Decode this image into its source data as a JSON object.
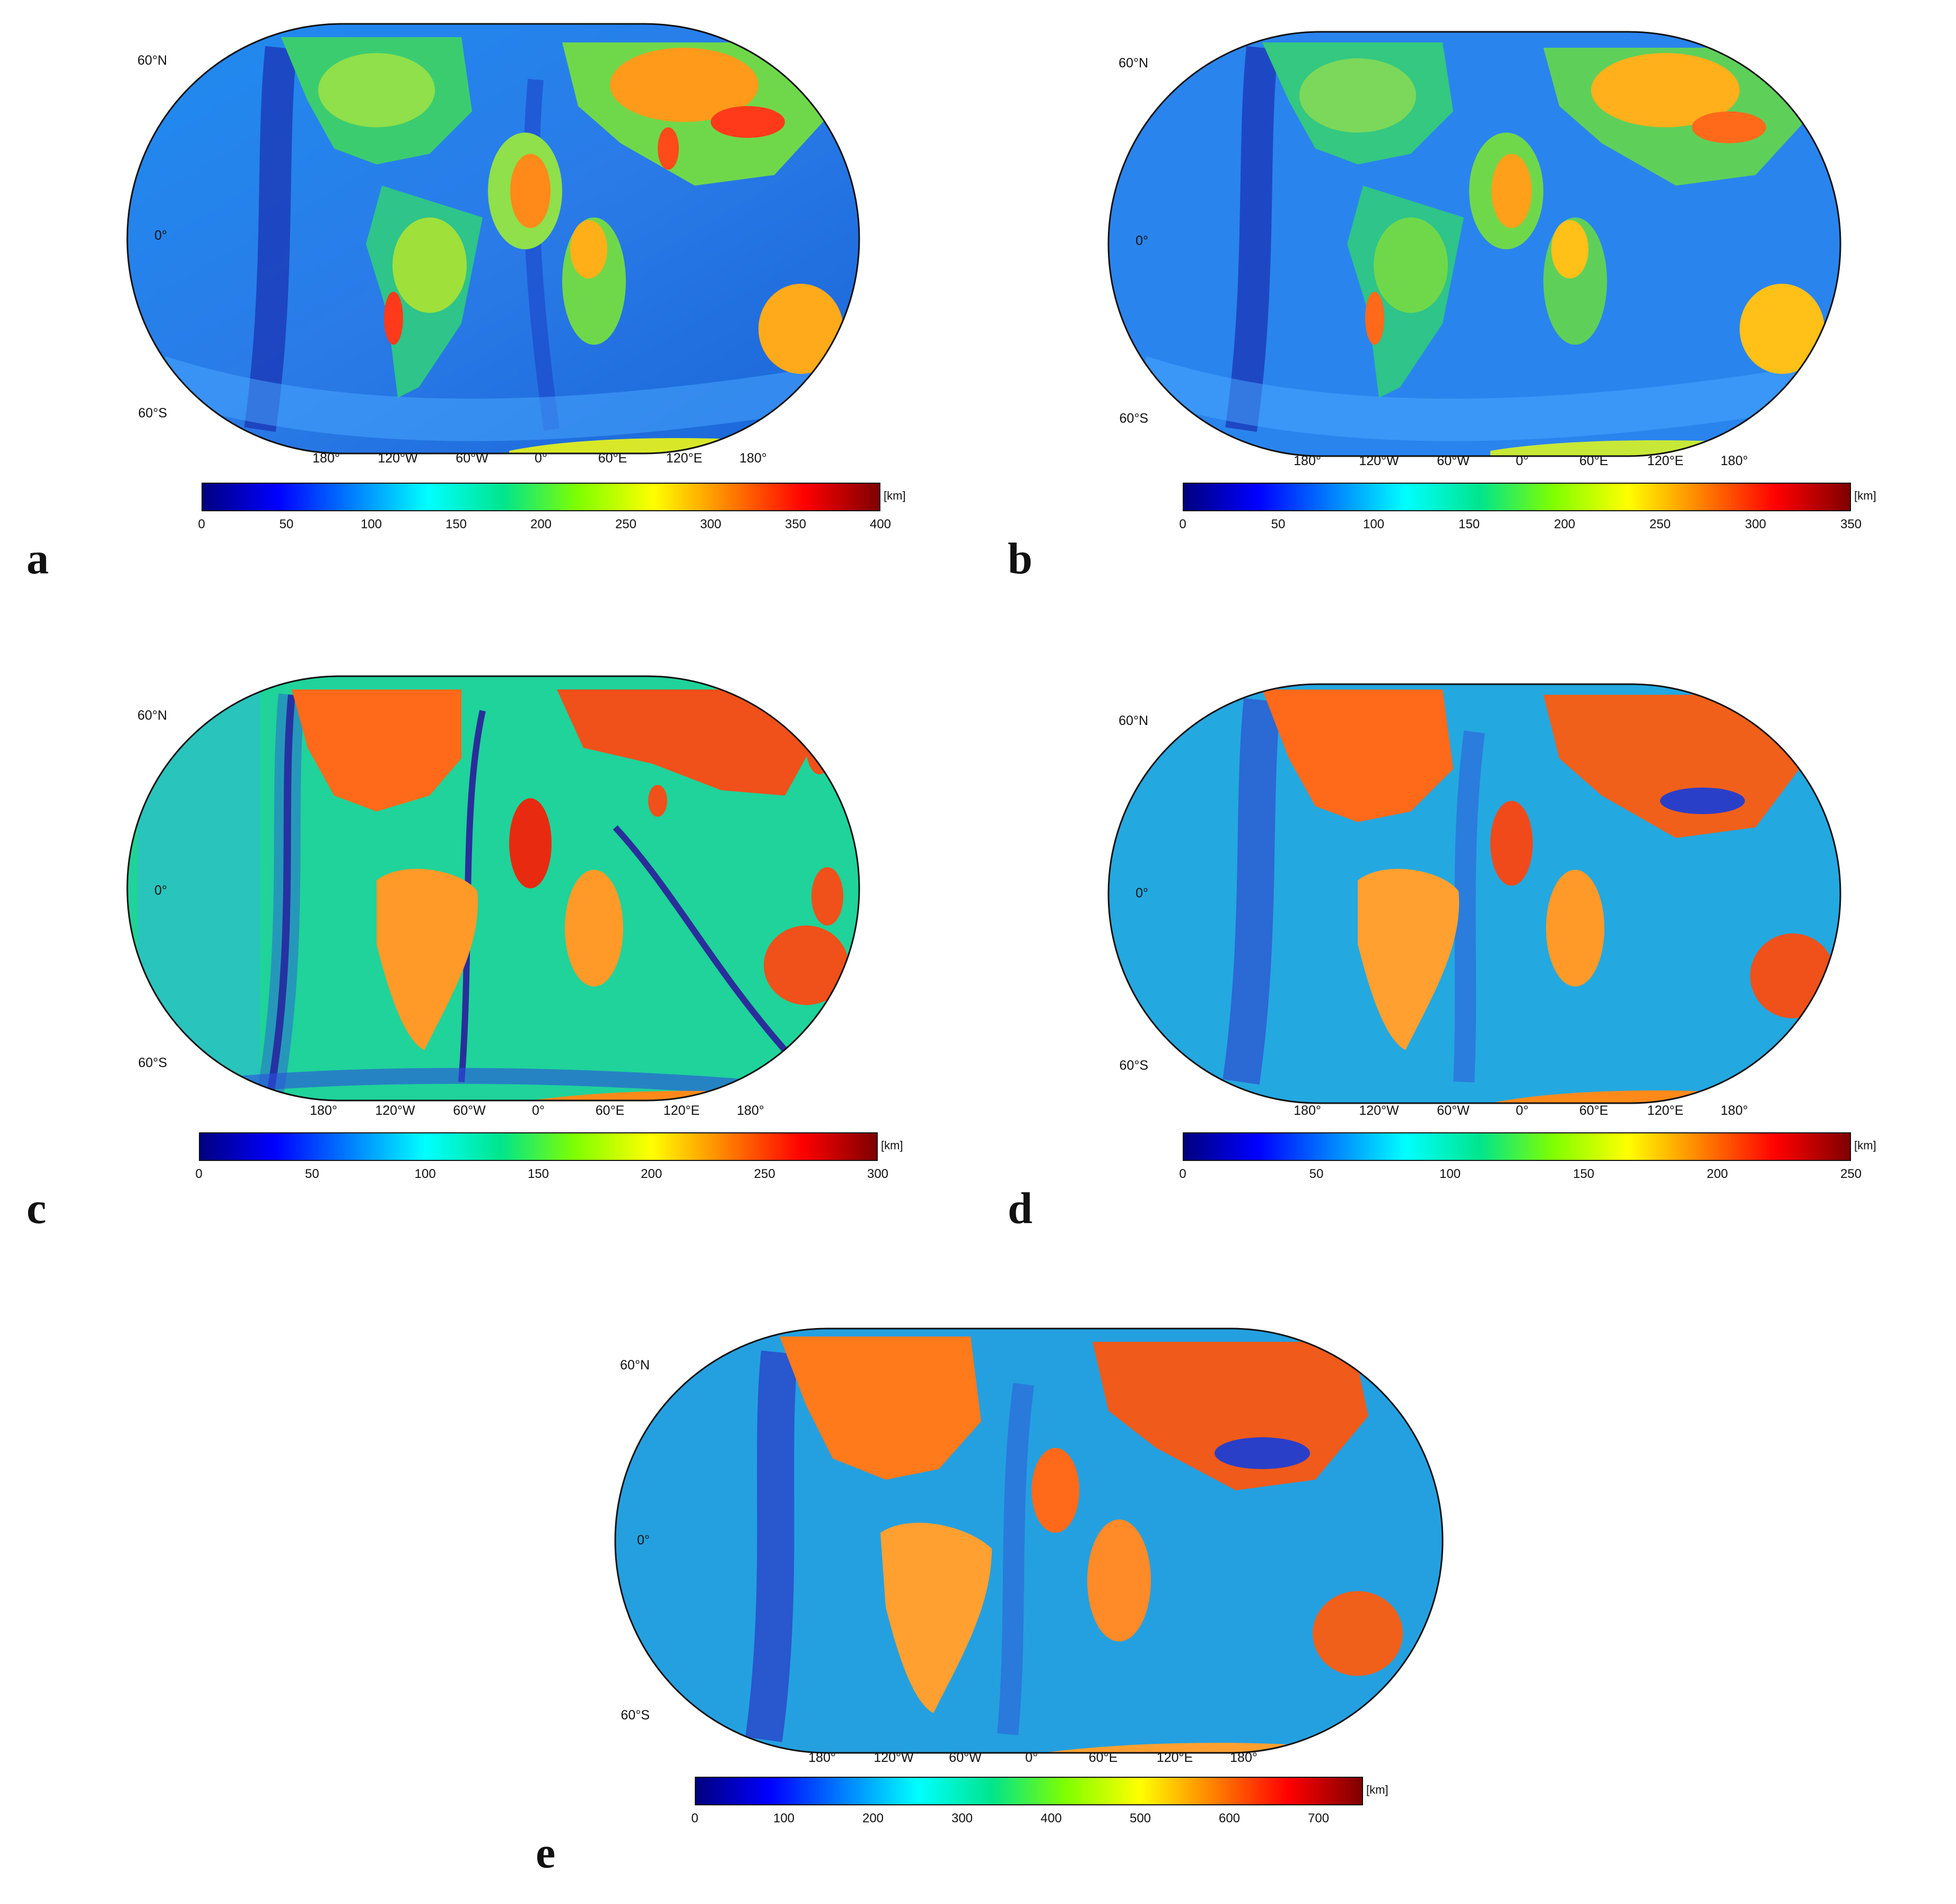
{
  "panels": [
    {
      "letter": "a",
      "lat_labels": [
        "60°N",
        "0°",
        "60°S"
      ],
      "lon_labels": [
        "180°",
        "120°W",
        "60°W",
        "0°",
        "60°E",
        "120°E",
        "180°"
      ],
      "colorbar": {
        "unit": "[km]",
        "ticks": [
          "0",
          "50",
          "100",
          "150",
          "200",
          "250",
          "300",
          "350",
          "400"
        ]
      }
    },
    {
      "letter": "b",
      "lat_labels": [
        "60°N",
        "0°",
        "60°S"
      ],
      "lon_labels": [
        "180°",
        "120°W",
        "60°W",
        "0°",
        "60°E",
        "120°E",
        "180°"
      ],
      "colorbar": {
        "unit": "[km]",
        "ticks": [
          "0",
          "50",
          "100",
          "150",
          "200",
          "250",
          "300",
          "350"
        ]
      }
    },
    {
      "letter": "c",
      "lat_labels": [
        "60°N",
        "0°",
        "60°S"
      ],
      "lon_labels": [
        "180°",
        "120°W",
        "60°W",
        "0°",
        "60°E",
        "120°E",
        "180°"
      ],
      "colorbar": {
        "unit": "[km]",
        "ticks": [
          "0",
          "50",
          "100",
          "150",
          "200",
          "250",
          "300"
        ]
      }
    },
    {
      "letter": "d",
      "lat_labels": [
        "60°N",
        "0°",
        "60°S"
      ],
      "lon_labels": [
        "180°",
        "120°W",
        "60°W",
        "0°",
        "60°E",
        "120°E",
        "180°"
      ],
      "colorbar": {
        "unit": "[km]",
        "ticks": [
          "0",
          "50",
          "100",
          "150",
          "200",
          "250"
        ]
      }
    },
    {
      "letter": "e",
      "lat_labels": [
        "60°N",
        "0°",
        "60°S"
      ],
      "lon_labels": [
        "180°",
        "120°W",
        "60°W",
        "0°",
        "60°E",
        "120°E",
        "180°"
      ],
      "colorbar": {
        "unit": "[km]",
        "ticks": [
          "0",
          "100",
          "200",
          "300",
          "400",
          "500",
          "600",
          "700"
        ]
      }
    }
  ],
  "colormap": [
    "#00007f",
    "#0000ff",
    "#0080ff",
    "#00ffff",
    "#00e58c",
    "#80ff00",
    "#ffff00",
    "#ff8000",
    "#ff0000",
    "#7f0000"
  ]
}
